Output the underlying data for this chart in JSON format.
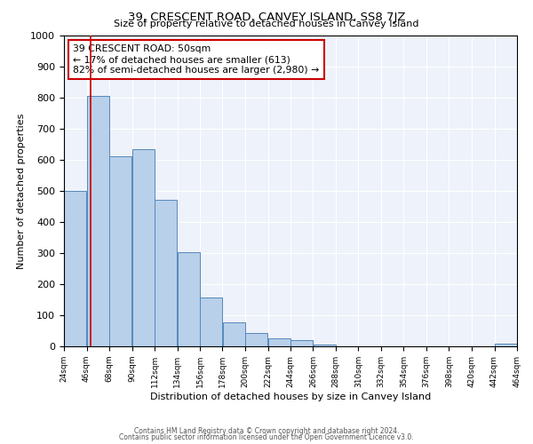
{
  "title": "39, CRESCENT ROAD, CANVEY ISLAND, SS8 7JZ",
  "subtitle": "Size of property relative to detached houses in Canvey Island",
  "xlabel": "Distribution of detached houses by size in Canvey Island",
  "ylabel": "Number of detached properties",
  "bin_edges": [
    24,
    46,
    68,
    90,
    112,
    134,
    156,
    178,
    200,
    222,
    244,
    266,
    288,
    310,
    332,
    354,
    376,
    398,
    420,
    442,
    464
  ],
  "bar_heights": [
    500,
    805,
    612,
    635,
    472,
    302,
    158,
    78,
    44,
    25,
    20,
    5,
    0,
    0,
    0,
    0,
    0,
    0,
    0,
    8
  ],
  "bar_color": "#b8d0ea",
  "bar_edge_color": "#5588bb",
  "vline_x": 50,
  "vline_color": "#cc0000",
  "ylim": [
    0,
    1000
  ],
  "yticks": [
    0,
    100,
    200,
    300,
    400,
    500,
    600,
    700,
    800,
    900,
    1000
  ],
  "annotation_text": "39 CRESCENT ROAD: 50sqm\n← 17% of detached houses are smaller (613)\n82% of semi-detached houses are larger (2,980) →",
  "annotation_box_edge_color": "#cc0000",
  "background_color": "#eef2fa",
  "footer_line1": "Contains HM Land Registry data © Crown copyright and database right 2024.",
  "footer_line2": "Contains public sector information licensed under the Open Government Licence v3.0.",
  "tick_labels": [
    "24sqm",
    "46sqm",
    "68sqm",
    "90sqm",
    "112sqm",
    "134sqm",
    "156sqm",
    "178sqm",
    "200sqm",
    "222sqm",
    "244sqm",
    "266sqm",
    "288sqm",
    "310sqm",
    "332sqm",
    "354sqm",
    "376sqm",
    "398sqm",
    "420sqm",
    "442sqm",
    "464sqm"
  ]
}
